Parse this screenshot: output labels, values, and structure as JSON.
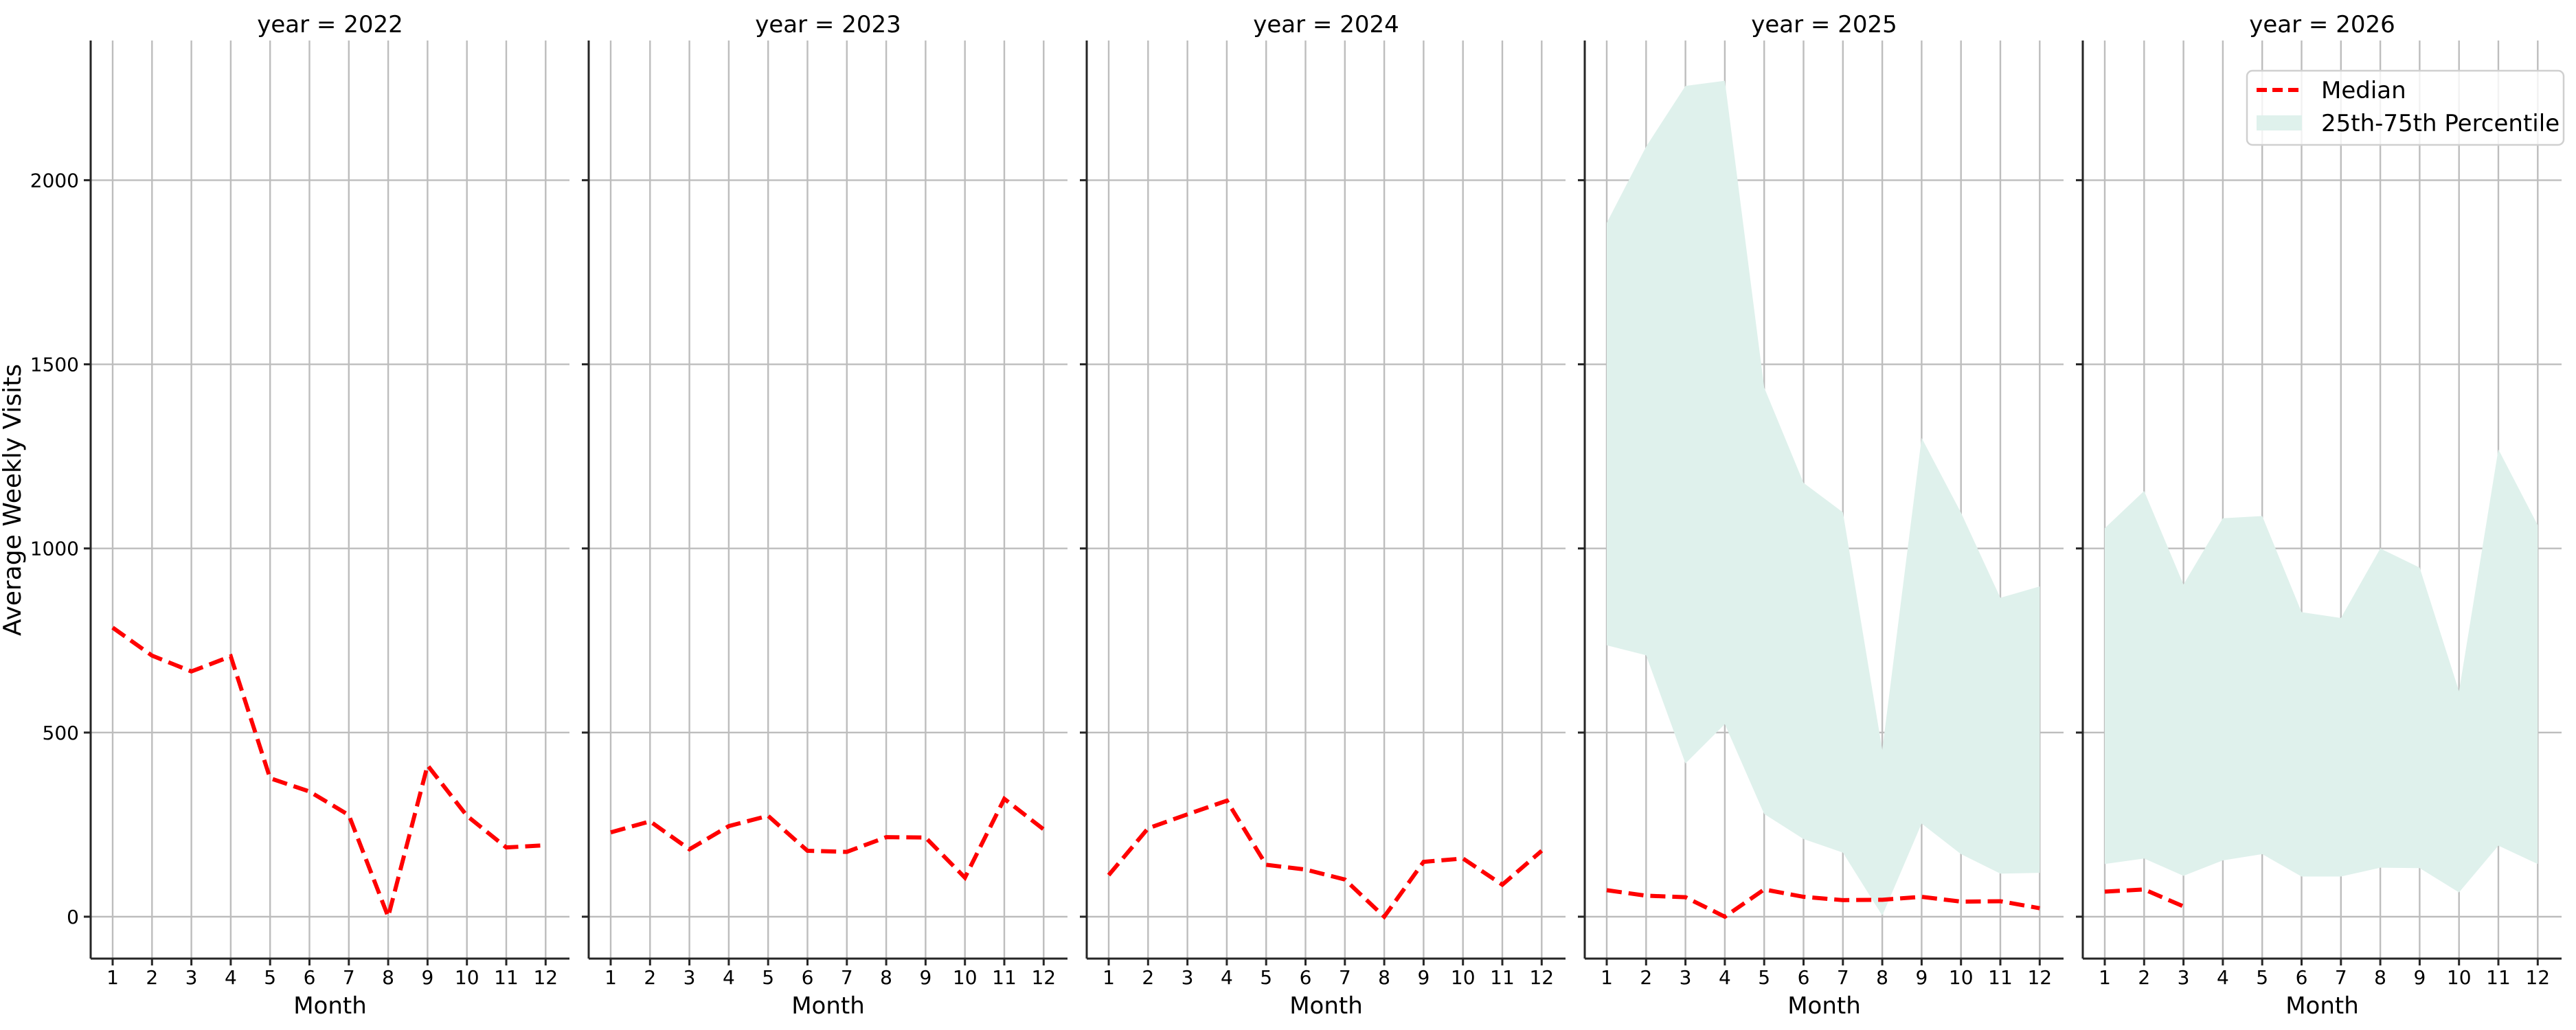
{
  "figure": {
    "ylabel": "Average Weekly Visits",
    "xlabel": "Month",
    "legend": {
      "median_label": "Median",
      "band_label": "25th-75th Percentile"
    },
    "colors": {
      "median": "#ff0000",
      "band": "#dff1ec",
      "grid": "#bdbdbd",
      "spine": "#262626"
    }
  },
  "chart_data": {
    "type": "line",
    "title": "",
    "facet_by": "year",
    "xlabel": "Month",
    "ylabel": "Average Weekly Visits",
    "x": [
      1,
      2,
      3,
      4,
      5,
      6,
      7,
      8,
      9,
      10,
      11,
      12
    ],
    "x_ticks": [
      "1",
      "2",
      "3",
      "4",
      "5",
      "6",
      "7",
      "8",
      "9",
      "10",
      "11",
      "12"
    ],
    "y_ticks": [
      0,
      500,
      1000,
      1500,
      2000
    ],
    "ylim": [
      -114,
      2380
    ],
    "grid": true,
    "legend_position": "upper right (last panel)",
    "legend": [
      "Median",
      "25th-75th Percentile"
    ],
    "panels": [
      {
        "title": "year = 2022",
        "year": 2022,
        "median": [
          785,
          709,
          666,
          707,
          376,
          340,
          276,
          0,
          411,
          274,
          188,
          194
        ],
        "p25": null,
        "p75": null
      },
      {
        "title": "year = 2023",
        "year": 2023,
        "median": [
          229,
          259,
          183,
          246,
          274,
          179,
          176,
          216,
          215,
          106,
          320,
          237
        ],
        "p25": null,
        "p75": null
      },
      {
        "title": "year = 2024",
        "year": 2024,
        "median": [
          113,
          240,
          278,
          315,
          141,
          128,
          101,
          0,
          149,
          158,
          87,
          179
        ],
        "p25": null,
        "p75": null
      },
      {
        "title": "year = 2025",
        "year": 2025,
        "median": [
          72,
          57,
          53,
          0,
          74,
          54,
          45,
          46,
          54,
          41,
          42,
          23
        ],
        "p25": [
          737,
          710,
          416,
          523,
          279,
          211,
          174,
          3,
          253,
          170,
          117,
          119
        ],
        "p75": [
          1884,
          2091,
          2256,
          2270,
          1437,
          1178,
          1098,
          453,
          1300,
          1097,
          866,
          897
        ]
      },
      {
        "title": "year = 2026",
        "year": 2026,
        "median": [
          68,
          74,
          28,
          null,
          null,
          null,
          null,
          null,
          null,
          null,
          null,
          null
        ],
        "p25": [
          143,
          158,
          111,
          153,
          170,
          109,
          109,
          133,
          132,
          66,
          193,
          143
        ],
        "p75": [
          1055,
          1156,
          902,
          1082,
          1088,
          827,
          811,
          1000,
          948,
          612,
          1269,
          1063
        ]
      }
    ]
  }
}
